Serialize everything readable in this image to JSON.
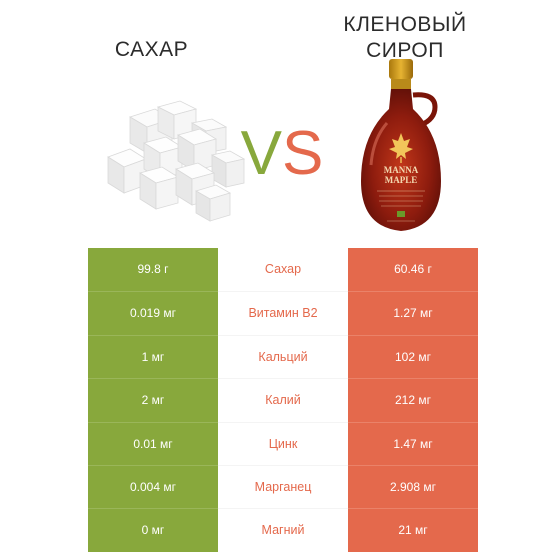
{
  "header": {
    "left_title": "САХАР",
    "right_title_line1": "КЛЕНОВЫЙ",
    "right_title_line2": "СИРОП",
    "vs_v": "V",
    "vs_s": "S"
  },
  "bottle": {
    "brand_line1": "MANNA",
    "brand_line2": "MAPLE"
  },
  "colors": {
    "left": "#88a83c",
    "right": "#e4694c"
  },
  "rows": [
    {
      "left": "99.8 г",
      "label": "Сахар",
      "right": "60.46 г"
    },
    {
      "left": "0.019 мг",
      "label": "Витамин B2",
      "right": "1.27 мг"
    },
    {
      "left": "1 мг",
      "label": "Кальций",
      "right": "102 мг"
    },
    {
      "left": "2 мг",
      "label": "Калий",
      "right": "212 мг"
    },
    {
      "left": "0.01 мг",
      "label": "Цинк",
      "right": "1.47 мг"
    },
    {
      "left": "0.004 мг",
      "label": "Марганец",
      "right": "2.908 мг"
    },
    {
      "left": "0 мг",
      "label": "Магний",
      "right": "21 мг"
    }
  ]
}
